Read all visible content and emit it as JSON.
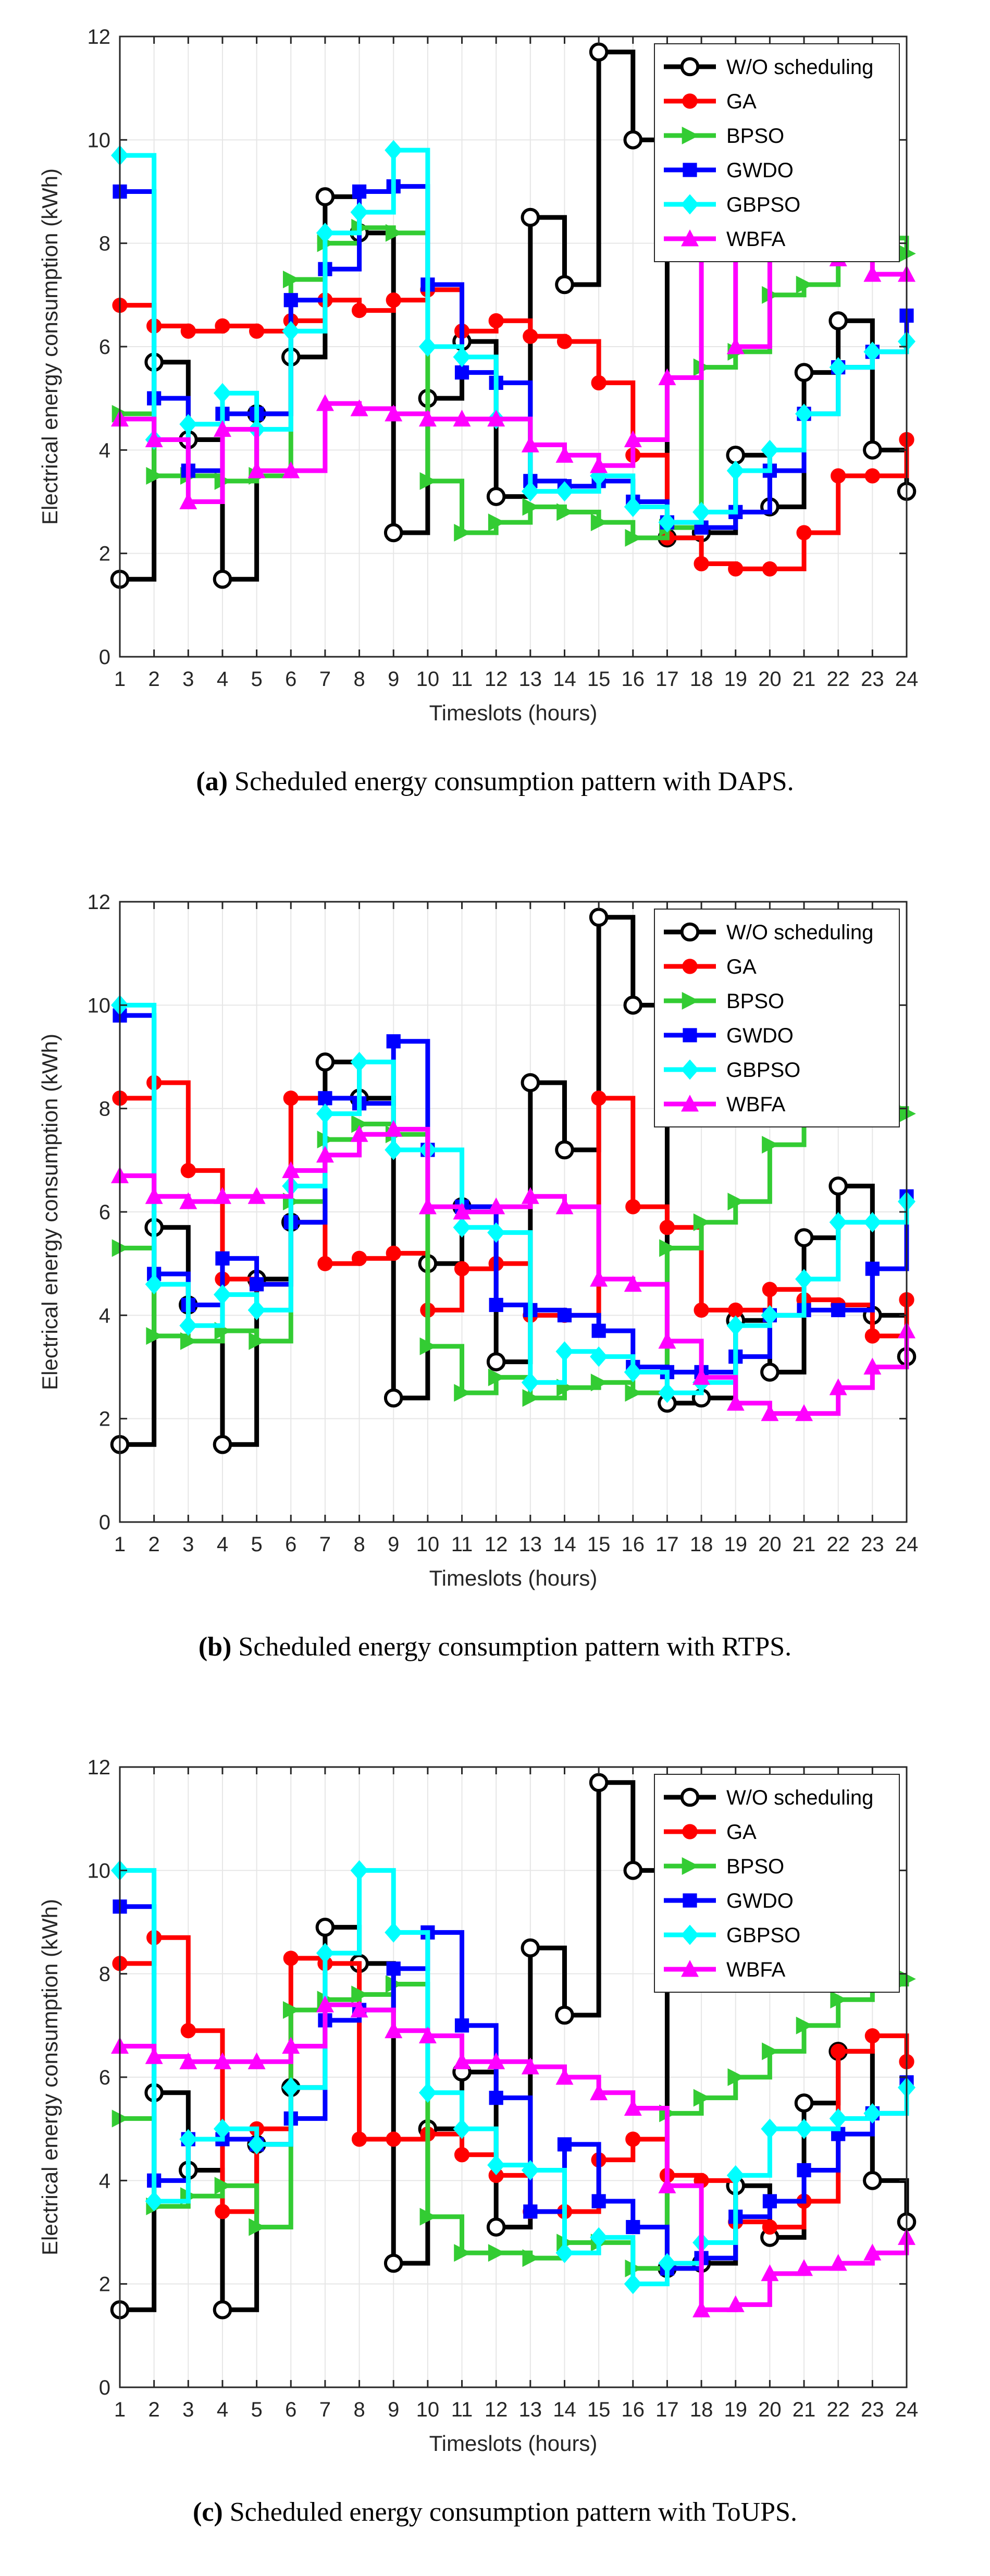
{
  "common": {
    "xlabel": "Timeslots (hours)",
    "ylabel": "Electrical energy consumption (kWh)",
    "xticks": [
      "1",
      "2",
      "3",
      "4",
      "5",
      "6",
      "7",
      "8",
      "9",
      "10",
      "11",
      "12",
      "13",
      "14",
      "15",
      "16",
      "17",
      "18",
      "19",
      "20",
      "21",
      "22",
      "23",
      "24"
    ],
    "yticks": [
      "0",
      "2",
      "4",
      "6",
      "8",
      "10",
      "12"
    ],
    "legend": [
      {
        "name": "W/O scheduling",
        "color": "#000000",
        "marker": "circle-open"
      },
      {
        "name": "GA",
        "color": "#ff0000",
        "marker": "circle"
      },
      {
        "name": "BPSO",
        "color": "#33cc33",
        "marker": "triangle-right"
      },
      {
        "name": "GWDO",
        "color": "#0000ff",
        "marker": "square"
      },
      {
        "name": "GBPSO",
        "color": "#00ffff",
        "marker": "diamond"
      },
      {
        "name": "WBFA",
        "color": "#ff00ff",
        "marker": "triangle-up"
      }
    ]
  },
  "captions": [
    {
      "label": "(a)",
      "text": " Scheduled energy consumption pattern with DAPS."
    },
    {
      "label": "(b)",
      "text": " Scheduled energy consumption pattern with RTPS."
    },
    {
      "label": "(c)",
      "text": " Scheduled energy consumption pattern with ToUPS."
    }
  ],
  "chart_data": [
    {
      "type": "line",
      "step": "post",
      "title": "Scheduled energy consumption pattern with DAPS",
      "xlabel": "Timeslots (hours)",
      "ylabel": "Electrical energy consumption (kWh)",
      "xlim": [
        1,
        24
      ],
      "ylim": [
        0,
        12
      ],
      "grid": true,
      "legend_position": "top-right",
      "x": [
        1,
        2,
        3,
        4,
        5,
        6,
        7,
        8,
        9,
        10,
        11,
        12,
        13,
        14,
        15,
        16,
        17,
        18,
        19,
        20,
        21,
        22,
        23,
        24
      ],
      "series": [
        {
          "name": "W/O scheduling",
          "values": [
            1.5,
            5.7,
            4.2,
            1.5,
            4.7,
            5.8,
            8.9,
            8.2,
            2.4,
            5.0,
            6.1,
            3.1,
            8.5,
            7.2,
            11.7,
            10.0,
            2.3,
            2.4,
            3.9,
            2.9,
            5.5,
            6.5,
            4.0,
            3.2
          ]
        },
        {
          "name": "GA",
          "values": [
            6.8,
            6.4,
            6.3,
            6.4,
            6.3,
            6.5,
            6.9,
            6.7,
            6.9,
            7.1,
            6.3,
            6.5,
            6.2,
            6.1,
            5.3,
            3.9,
            2.3,
            1.8,
            1.7,
            1.7,
            2.4,
            3.5,
            3.5,
            4.2
          ]
        },
        {
          "name": "BPSO",
          "values": [
            4.7,
            3.5,
            3.5,
            3.4,
            3.5,
            7.3,
            8.0,
            8.3,
            8.2,
            3.4,
            2.4,
            2.6,
            2.9,
            2.8,
            2.6,
            2.3,
            2.5,
            5.6,
            5.9,
            7.0,
            7.2,
            7.9,
            8.1,
            7.8
          ]
        },
        {
          "name": "GWDO",
          "values": [
            9.0,
            5.0,
            3.6,
            4.7,
            4.7,
            6.9,
            7.5,
            9.0,
            9.1,
            7.2,
            5.5,
            5.3,
            3.4,
            3.3,
            3.4,
            3.0,
            2.6,
            2.5,
            2.8,
            3.6,
            4.7,
            5.6,
            5.9,
            6.6
          ]
        },
        {
          "name": "GBPSO",
          "values": [
            9.7,
            4.2,
            4.5,
            5.1,
            4.4,
            6.3,
            8.2,
            8.6,
            9.8,
            6.0,
            5.8,
            4.6,
            3.2,
            3.2,
            3.5,
            2.9,
            2.6,
            2.8,
            3.6,
            4.0,
            4.7,
            5.6,
            5.9,
            6.1
          ]
        },
        {
          "name": "WBFA",
          "values": [
            4.6,
            4.2,
            3.0,
            4.4,
            3.6,
            3.6,
            4.9,
            4.8,
            4.7,
            4.6,
            4.6,
            4.6,
            4.1,
            3.9,
            3.7,
            4.2,
            5.4,
            7.8,
            6.0,
            7.8,
            8.0,
            7.7,
            7.4,
            7.4
          ]
        }
      ]
    },
    {
      "type": "line",
      "step": "post",
      "title": "Scheduled energy consumption pattern with RTPS",
      "xlabel": "Timeslots (hours)",
      "ylabel": "Electrical energy consumption (kWh)",
      "xlim": [
        1,
        24
      ],
      "ylim": [
        0,
        12
      ],
      "grid": true,
      "legend_position": "top-right",
      "x": [
        1,
        2,
        3,
        4,
        5,
        6,
        7,
        8,
        9,
        10,
        11,
        12,
        13,
        14,
        15,
        16,
        17,
        18,
        19,
        20,
        21,
        22,
        23,
        24
      ],
      "series": [
        {
          "name": "W/O scheduling",
          "values": [
            1.5,
            5.7,
            4.2,
            1.5,
            4.7,
            5.8,
            8.9,
            8.2,
            2.4,
            5.0,
            6.1,
            3.1,
            8.5,
            7.2,
            11.7,
            10.0,
            2.3,
            2.4,
            3.9,
            2.9,
            5.5,
            6.5,
            4.0,
            3.2
          ]
        },
        {
          "name": "GA",
          "values": [
            8.2,
            8.5,
            6.8,
            4.7,
            4.6,
            8.2,
            5.0,
            5.1,
            5.2,
            4.1,
            4.9,
            5.0,
            4.0,
            4.0,
            8.2,
            6.1,
            5.7,
            4.1,
            4.1,
            4.5,
            4.3,
            4.2,
            3.6,
            4.3
          ]
        },
        {
          "name": "BPSO",
          "values": [
            5.3,
            3.6,
            3.5,
            3.7,
            3.5,
            6.2,
            7.4,
            7.7,
            7.5,
            3.4,
            2.5,
            2.8,
            2.4,
            2.6,
            2.7,
            2.5,
            5.3,
            5.8,
            6.2,
            7.3,
            7.9,
            8.0,
            8.0,
            7.9
          ]
        },
        {
          "name": "GWDO",
          "values": [
            9.8,
            4.8,
            4.2,
            5.1,
            4.6,
            5.8,
            8.2,
            8.1,
            9.3,
            7.2,
            6.1,
            4.2,
            4.1,
            4.0,
            3.7,
            3.0,
            2.9,
            2.9,
            3.2,
            4.0,
            4.1,
            4.1,
            4.9,
            6.3
          ]
        },
        {
          "name": "GBPSO",
          "values": [
            10.0,
            4.6,
            3.8,
            4.4,
            4.1,
            6.5,
            7.9,
            8.9,
            7.2,
            7.2,
            5.7,
            5.6,
            2.7,
            3.3,
            3.2,
            2.9,
            2.5,
            2.7,
            3.8,
            4.0,
            4.7,
            5.8,
            5.8,
            6.2
          ]
        },
        {
          "name": "WBFA",
          "values": [
            6.7,
            6.3,
            6.2,
            6.3,
            6.3,
            6.8,
            7.1,
            7.5,
            7.6,
            6.1,
            6.0,
            6.1,
            6.3,
            6.1,
            4.7,
            4.6,
            3.5,
            2.8,
            2.3,
            2.1,
            2.1,
            2.6,
            3.0,
            3.7
          ]
        }
      ]
    },
    {
      "type": "line",
      "step": "post",
      "title": "Scheduled energy consumption pattern with ToUPS",
      "xlabel": "Timeslots (hours)",
      "ylabel": "Electrical energy consumption (kWh)",
      "xlim": [
        1,
        24
      ],
      "ylim": [
        0,
        12
      ],
      "grid": true,
      "legend_position": "top-right",
      "x": [
        1,
        2,
        3,
        4,
        5,
        6,
        7,
        8,
        9,
        10,
        11,
        12,
        13,
        14,
        15,
        16,
        17,
        18,
        19,
        20,
        21,
        22,
        23,
        24
      ],
      "series": [
        {
          "name": "W/O scheduling",
          "values": [
            1.5,
            5.7,
            4.2,
            1.5,
            4.7,
            5.8,
            8.9,
            8.2,
            2.4,
            5.0,
            6.1,
            3.1,
            8.5,
            7.2,
            11.7,
            10.0,
            2.3,
            2.4,
            3.9,
            2.9,
            5.5,
            6.5,
            4.0,
            3.2
          ]
        },
        {
          "name": "GA",
          "values": [
            8.2,
            8.7,
            6.9,
            3.4,
            5.0,
            8.3,
            8.2,
            4.8,
            4.8,
            4.9,
            4.5,
            4.1,
            3.4,
            3.4,
            4.4,
            4.8,
            4.1,
            4.0,
            3.2,
            3.1,
            3.6,
            6.5,
            6.8,
            6.3
          ]
        },
        {
          "name": "BPSO",
          "values": [
            5.2,
            3.5,
            3.7,
            3.9,
            3.1,
            7.3,
            7.5,
            7.6,
            7.8,
            3.3,
            2.6,
            2.6,
            2.5,
            2.8,
            2.8,
            2.3,
            5.3,
            5.6,
            6.0,
            6.5,
            7.0,
            7.5,
            7.8,
            7.9
          ]
        },
        {
          "name": "GWDO",
          "values": [
            9.3,
            4.0,
            4.8,
            4.8,
            4.7,
            5.2,
            7.1,
            7.3,
            8.1,
            8.8,
            7.0,
            5.6,
            3.4,
            4.7,
            3.6,
            3.1,
            2.3,
            2.5,
            3.3,
            3.6,
            4.2,
            4.9,
            5.3,
            5.9
          ]
        },
        {
          "name": "GBPSO",
          "values": [
            10.0,
            3.6,
            4.8,
            5.0,
            4.7,
            5.8,
            8.4,
            10.0,
            8.8,
            5.7,
            5.0,
            4.3,
            4.2,
            2.6,
            2.9,
            2.0,
            2.4,
            2.8,
            4.1,
            5.0,
            5.0,
            5.2,
            5.3,
            5.8
          ]
        },
        {
          "name": "WBFA",
          "values": [
            6.6,
            6.4,
            6.3,
            6.3,
            6.3,
            6.6,
            7.4,
            7.3,
            6.9,
            6.8,
            6.3,
            6.3,
            6.2,
            6.0,
            5.7,
            5.4,
            3.9,
            1.5,
            1.6,
            2.2,
            2.3,
            2.4,
            2.6,
            2.9
          ]
        }
      ]
    }
  ]
}
